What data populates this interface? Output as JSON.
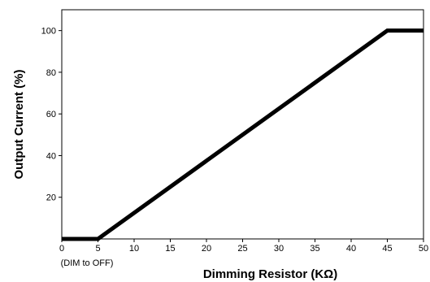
{
  "chart_data": {
    "type": "line",
    "title": "",
    "xlabel": "Dimming Resistor (KΩ)",
    "ylabel": "Output Current (%)",
    "xlim": [
      0,
      50
    ],
    "ylim": [
      0,
      110
    ],
    "x_ticks": [
      0,
      5,
      10,
      15,
      20,
      25,
      30,
      35,
      40,
      45,
      50
    ],
    "y_ticks": [
      20,
      40,
      60,
      80,
      100
    ],
    "grid": false,
    "legend": "none",
    "line_color": "#000000",
    "series": [
      {
        "x": [
          0,
          5,
          45,
          50
        ],
        "y": [
          0,
          0,
          100,
          100
        ]
      }
    ],
    "annotations": [
      {
        "text": "(DIM to OFF)",
        "x": 0
      }
    ]
  }
}
